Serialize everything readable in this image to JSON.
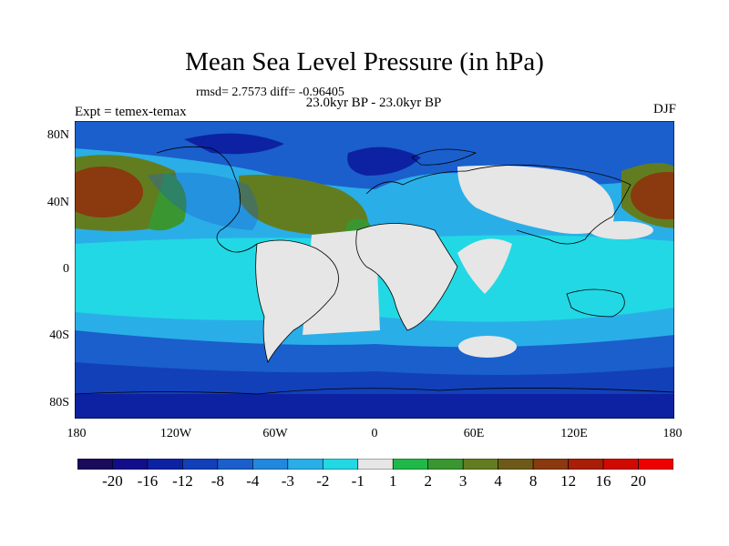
{
  "title": "Mean Sea Level Pressure (in hPa)",
  "stats": "rmsd= 2.7573 diff= -0.96405",
  "subtitle": "23.0kyr BP - 23.0kyr BP",
  "experiment": "Expt = temex-temax",
  "season": "DJF",
  "y_ticks": [
    "80N",
    "40N",
    "0",
    "40S",
    "80S"
  ],
  "x_ticks": [
    "180",
    "120W",
    "60W",
    "0",
    "60E",
    "120E",
    "180"
  ],
  "colorbar": {
    "labels": [
      "-20",
      "-16",
      "-12",
      "-8",
      "-4",
      "-3",
      "-2",
      "-1",
      "1",
      "2",
      "3",
      "4",
      "8",
      "12",
      "16",
      "20"
    ],
    "colors": [
      "#1a0a5c",
      "#120e8a",
      "#0c22a3",
      "#1240b8",
      "#1a5fcc",
      "#2188dd",
      "#2aaee8",
      "#22d8e4",
      "#e6e6e6",
      "#20b848",
      "#3a9630",
      "#627d20",
      "#6d5a18",
      "#8a3a0e",
      "#a81e06",
      "#d00a00",
      "#ee0000"
    ]
  },
  "map_colors": {
    "ocean_base": "#2aaee8",
    "south_pole_band": "#1240b8",
    "south_mid_band": "#1a5fcc",
    "tropics_band": "#22d8e4",
    "land": "#e6e6e6",
    "north_deep_low": "#0c22a3",
    "north_high": "#627d20",
    "north_high_core": "#8a3a0e",
    "north_high_edge": "#3a9630",
    "coast": "#000000"
  }
}
